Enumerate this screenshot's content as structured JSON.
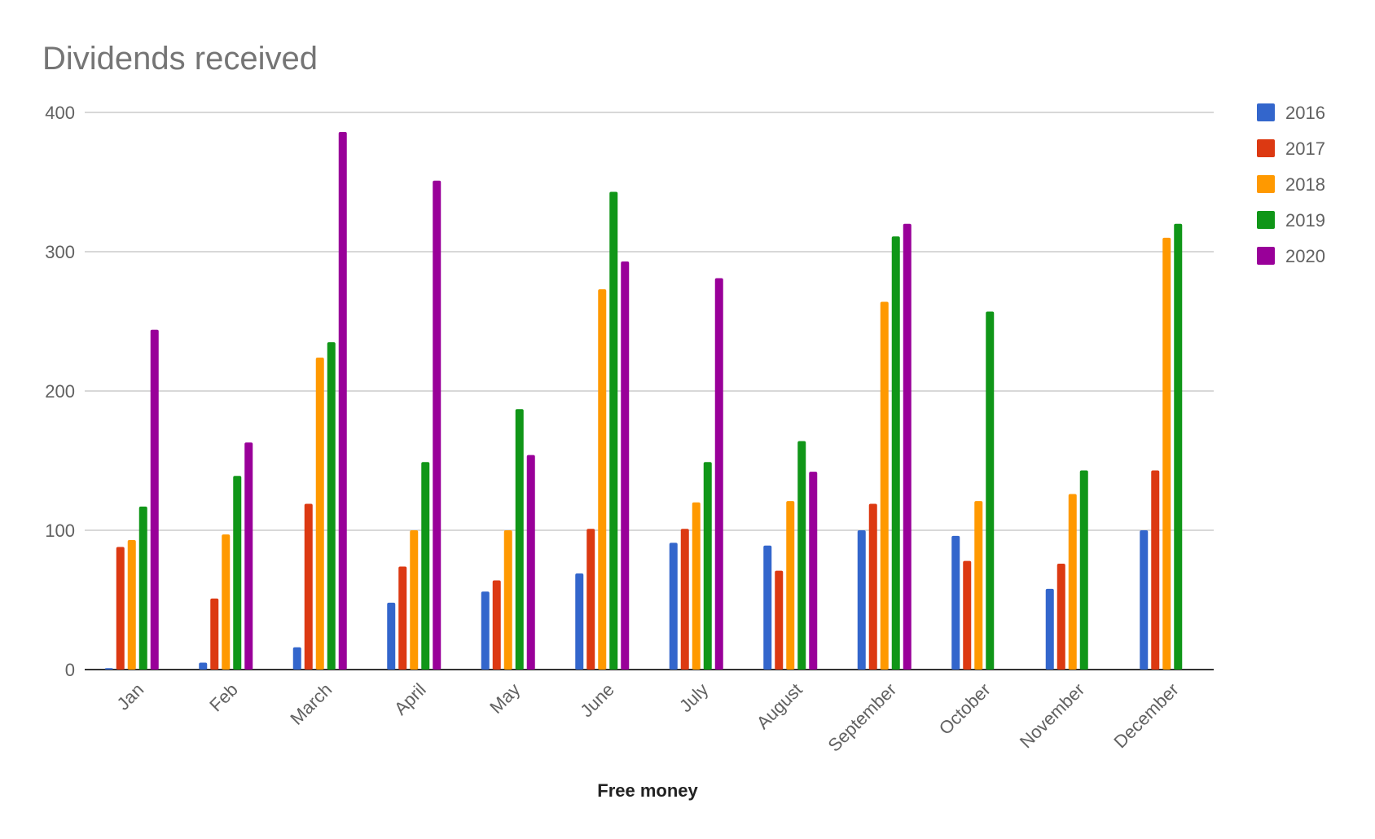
{
  "chart_data": {
    "type": "bar",
    "title": "Dividends received",
    "xlabel": "Free money",
    "ylabel": "",
    "ylim": [
      0,
      400
    ],
    "yticks": [
      0,
      100,
      200,
      300,
      400
    ],
    "grid": true,
    "legend_position": "right",
    "categories": [
      "Jan",
      "Feb",
      "March",
      "April",
      "May",
      "June",
      "July",
      "August",
      "September",
      "October",
      "November",
      "December"
    ],
    "series": [
      {
        "name": "2016",
        "color": "#3366cc",
        "values": [
          1,
          5,
          16,
          48,
          56,
          69,
          91,
          89,
          100,
          96,
          58,
          100
        ]
      },
      {
        "name": "2017",
        "color": "#dc3912",
        "values": [
          88,
          51,
          119,
          74,
          64,
          101,
          101,
          71,
          119,
          78,
          76,
          143
        ]
      },
      {
        "name": "2018",
        "color": "#ff9900",
        "values": [
          93,
          97,
          224,
          100,
          100,
          273,
          120,
          121,
          264,
          121,
          126,
          310
        ]
      },
      {
        "name": "2019",
        "color": "#109618",
        "values": [
          117,
          139,
          235,
          149,
          187,
          343,
          149,
          164,
          311,
          257,
          143,
          320
        ]
      },
      {
        "name": "2020",
        "color": "#990099",
        "values": [
          244,
          163,
          386,
          351,
          154,
          293,
          281,
          142,
          320,
          null,
          null,
          null
        ]
      }
    ]
  }
}
